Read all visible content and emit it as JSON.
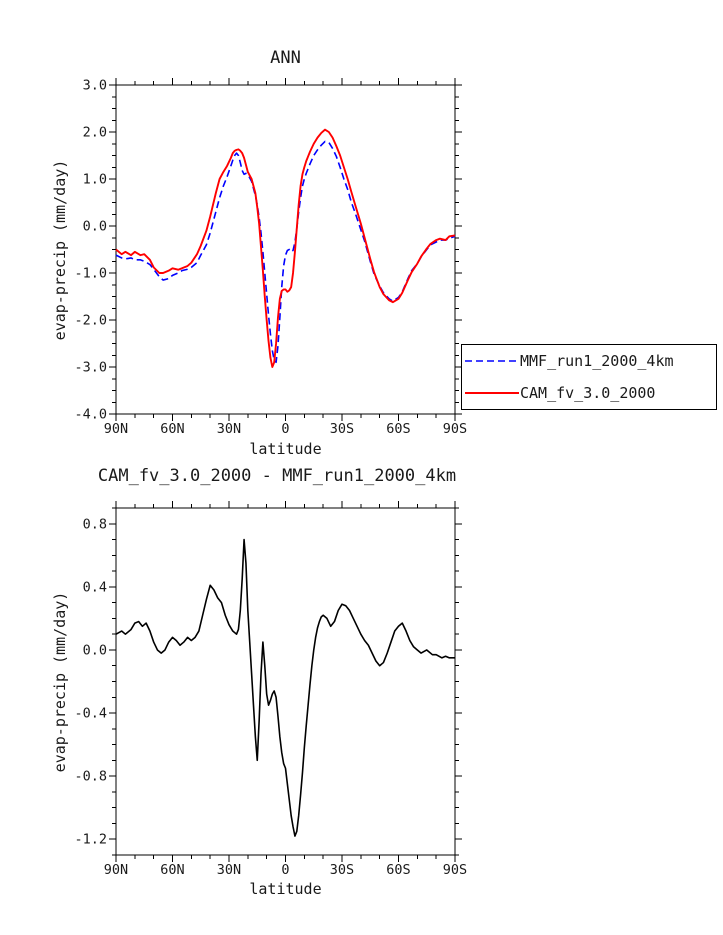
{
  "page": {
    "background": "#ffffff"
  },
  "legend": {
    "entries": [
      {
        "label": "MMF_run1_2000_4km",
        "color": "#0000ff",
        "style": "dashed"
      },
      {
        "label": "CAM_fv_3.0_2000",
        "color": "#ff0000",
        "style": "solid"
      }
    ]
  },
  "chart_data": [
    {
      "type": "line",
      "title": "ANN",
      "xlabel": "latitude",
      "ylabel": "evap-precip (mm/day)",
      "xlim": [
        90,
        -90
      ],
      "ylim": [
        3.0,
        -4.0
      ],
      "x_minor_step": 10,
      "y_minor_step": 0.25,
      "grid": false,
      "legend_position": "outside-bottom-right",
      "xticks": [
        {
          "v": 90,
          "label": "90N"
        },
        {
          "v": 60,
          "label": "60N"
        },
        {
          "v": 30,
          "label": "30N"
        },
        {
          "v": 0,
          "label": "0"
        },
        {
          "v": -30,
          "label": "30S"
        },
        {
          "v": -60,
          "label": "60S"
        },
        {
          "v": -90,
          "label": "90S"
        }
      ],
      "yticks": [
        {
          "v": 3,
          "label": "3.0"
        },
        {
          "v": 2,
          "label": "2.0"
        },
        {
          "v": 1,
          "label": "1.0"
        },
        {
          "v": 0,
          "label": "0.0"
        },
        {
          "v": -1,
          "label": "-1.0"
        },
        {
          "v": -2,
          "label": "-2.0"
        },
        {
          "v": -3,
          "label": "-3.0"
        },
        {
          "v": -4,
          "label": "-4.0"
        }
      ],
      "x": [
        90,
        87,
        85,
        82,
        80,
        77,
        75,
        72,
        70,
        67,
        65,
        62,
        60,
        57,
        55,
        52,
        50,
        47,
        45,
        42,
        40,
        37,
        35,
        33,
        31,
        29,
        28,
        27,
        26,
        25,
        24,
        23,
        22,
        21,
        20,
        18,
        16,
        15,
        14,
        13,
        12,
        11,
        10,
        9,
        8,
        7,
        6,
        5,
        4,
        3,
        2,
        1,
        0,
        -1,
        -2,
        -3,
        -4,
        -5,
        -6,
        -7,
        -8,
        -9,
        -10,
        -11,
        -12,
        -13,
        -15,
        -17,
        -19,
        -21,
        -23,
        -25,
        -27,
        -29,
        -31,
        -33,
        -35,
        -37,
        -40,
        -42,
        -45,
        -47,
        -50,
        -52,
        -55,
        -57,
        -60,
        -62,
        -65,
        -67,
        -70,
        -72,
        -75,
        -77,
        -80,
        -82,
        -85,
        -87,
        -90
      ],
      "series": [
        {
          "name": "MMF_run1_2000_4km",
          "color": "#0000ff",
          "dash": "7,4",
          "width": 1.6,
          "values": [
            -0.62,
            -0.68,
            -0.7,
            -0.68,
            -0.72,
            -0.72,
            -0.75,
            -0.82,
            -0.92,
            -1.08,
            -1.15,
            -1.12,
            -1.05,
            -1.0,
            -0.95,
            -0.92,
            -0.88,
            -0.78,
            -0.62,
            -0.4,
            -0.15,
            0.3,
            0.6,
            0.85,
            1.05,
            1.28,
            1.4,
            1.5,
            1.55,
            1.5,
            1.35,
            1.18,
            1.1,
            1.12,
            1.1,
            0.95,
            0.65,
            0.45,
            0.18,
            -0.15,
            -0.55,
            -1.0,
            -1.45,
            -1.9,
            -2.3,
            -2.65,
            -2.85,
            -2.9,
            -2.55,
            -1.95,
            -1.3,
            -0.85,
            -0.62,
            -0.52,
            -0.5,
            -0.55,
            -0.52,
            -0.35,
            -0.05,
            0.3,
            0.6,
            0.85,
            1.0,
            1.12,
            1.22,
            1.32,
            1.5,
            1.62,
            1.72,
            1.8,
            1.78,
            1.65,
            1.48,
            1.25,
            1.0,
            0.78,
            0.5,
            0.28,
            -0.08,
            -0.32,
            -0.75,
            -1.02,
            -1.28,
            -1.42,
            -1.55,
            -1.6,
            -1.52,
            -1.4,
            -1.12,
            -0.95,
            -0.8,
            -0.66,
            -0.5,
            -0.4,
            -0.34,
            -0.3,
            -0.3,
            -0.26,
            -0.22
          ]
        },
        {
          "name": "CAM_fv_3.0_2000",
          "color": "#ff0000",
          "dash": "",
          "width": 1.9,
          "values": [
            -0.5,
            -0.6,
            -0.55,
            -0.62,
            -0.55,
            -0.62,
            -0.6,
            -0.72,
            -0.88,
            -1.0,
            -1.0,
            -0.95,
            -0.9,
            -0.93,
            -0.9,
            -0.85,
            -0.78,
            -0.6,
            -0.42,
            -0.1,
            0.2,
            0.7,
            1.0,
            1.15,
            1.28,
            1.45,
            1.55,
            1.6,
            1.62,
            1.63,
            1.6,
            1.55,
            1.45,
            1.3,
            1.15,
            1.0,
            0.7,
            0.4,
            0.05,
            -0.45,
            -0.95,
            -1.5,
            -2.0,
            -2.45,
            -2.8,
            -3.0,
            -2.9,
            -2.5,
            -1.95,
            -1.55,
            -1.38,
            -1.35,
            -1.35,
            -1.4,
            -1.37,
            -1.3,
            -1.0,
            -0.55,
            -0.05,
            0.45,
            0.85,
            1.1,
            1.25,
            1.38,
            1.48,
            1.58,
            1.75,
            1.88,
            1.98,
            2.05,
            2.0,
            1.88,
            1.7,
            1.5,
            1.25,
            1.0,
            0.72,
            0.45,
            0.05,
            -0.25,
            -0.7,
            -0.98,
            -1.3,
            -1.45,
            -1.58,
            -1.62,
            -1.55,
            -1.42,
            -1.15,
            -0.98,
            -0.8,
            -0.65,
            -0.48,
            -0.38,
            -0.3,
            -0.27,
            -0.3,
            -0.22,
            -0.2
          ]
        }
      ]
    },
    {
      "type": "line",
      "title": "CAM_fv_3.0_2000 - MMF_run1_2000_4km",
      "xlabel": "latitude",
      "ylabel": "evap-precip (mm/day)",
      "xlim": [
        90,
        -90
      ],
      "ylim": [
        0.9,
        -1.3
      ],
      "x_minor_step": 10,
      "y_minor_step": 0.1,
      "grid": false,
      "xticks": [
        {
          "v": 90,
          "label": "90N"
        },
        {
          "v": 60,
          "label": "60N"
        },
        {
          "v": 30,
          "label": "30N"
        },
        {
          "v": 0,
          "label": "0"
        },
        {
          "v": -30,
          "label": "30S"
        },
        {
          "v": -60,
          "label": "60S"
        },
        {
          "v": -90,
          "label": "90S"
        }
      ],
      "yticks": [
        {
          "v": 0.8,
          "label": "0.8"
        },
        {
          "v": 0.4,
          "label": "0.4"
        },
        {
          "v": 0.0,
          "label": "0.0"
        },
        {
          "v": -0.4,
          "label": "-0.4"
        },
        {
          "v": -0.8,
          "label": "-0.8"
        },
        {
          "v": -1.2,
          "label": "-1.2"
        }
      ],
      "x": [
        90,
        87,
        85,
        82,
        80,
        78,
        76,
        74,
        72,
        70,
        68,
        66,
        64,
        62,
        60,
        58,
        56,
        54,
        52,
        50,
        48,
        46,
        44,
        42,
        40,
        38,
        36,
        34,
        32,
        30,
        28,
        26,
        25,
        24,
        23,
        22,
        21,
        20,
        19,
        18,
        17,
        16,
        15,
        14,
        13,
        12,
        11,
        10,
        9,
        8,
        7,
        6,
        5,
        4,
        3,
        2,
        1,
        0,
        -1,
        -2,
        -3,
        -4,
        -5,
        -6,
        -7,
        -8,
        -9,
        -10,
        -11,
        -12,
        -13,
        -14,
        -15,
        -16,
        -17,
        -18,
        -19,
        -20,
        -22,
        -24,
        -26,
        -28,
        -30,
        -32,
        -34,
        -36,
        -38,
        -40,
        -42,
        -44,
        -46,
        -48,
        -50,
        -52,
        -54,
        -56,
        -58,
        -60,
        -62,
        -64,
        -66,
        -68,
        -70,
        -72,
        -75,
        -78,
        -80,
        -83,
        -85,
        -87,
        -90
      ],
      "series": [
        {
          "name": "CAM_fv_3.0_2000 - MMF_run1_2000_4km",
          "color": "#000000",
          "dash": "",
          "width": 1.6,
          "values": [
            0.1,
            0.12,
            0.1,
            0.13,
            0.17,
            0.18,
            0.15,
            0.17,
            0.12,
            0.05,
            0.0,
            -0.02,
            0.0,
            0.05,
            0.08,
            0.06,
            0.03,
            0.05,
            0.08,
            0.06,
            0.08,
            0.12,
            0.22,
            0.32,
            0.41,
            0.38,
            0.33,
            0.3,
            0.22,
            0.16,
            0.12,
            0.1,
            0.13,
            0.25,
            0.45,
            0.7,
            0.55,
            0.25,
            0.05,
            -0.15,
            -0.35,
            -0.55,
            -0.7,
            -0.45,
            -0.15,
            0.05,
            -0.1,
            -0.28,
            -0.35,
            -0.32,
            -0.28,
            -0.26,
            -0.3,
            -0.42,
            -0.55,
            -0.65,
            -0.72,
            -0.75,
            -0.85,
            -0.95,
            -1.05,
            -1.12,
            -1.18,
            -1.15,
            -1.05,
            -0.92,
            -0.78,
            -0.62,
            -0.48,
            -0.35,
            -0.22,
            -0.1,
            0.0,
            0.08,
            0.14,
            0.18,
            0.21,
            0.22,
            0.2,
            0.15,
            0.18,
            0.25,
            0.29,
            0.28,
            0.25,
            0.2,
            0.15,
            0.1,
            0.06,
            0.03,
            -0.02,
            -0.07,
            -0.1,
            -0.08,
            -0.02,
            0.05,
            0.12,
            0.15,
            0.17,
            0.12,
            0.06,
            0.02,
            0.0,
            -0.02,
            0.0,
            -0.03,
            -0.03,
            -0.05,
            -0.04,
            -0.05,
            -0.05
          ]
        }
      ]
    }
  ]
}
